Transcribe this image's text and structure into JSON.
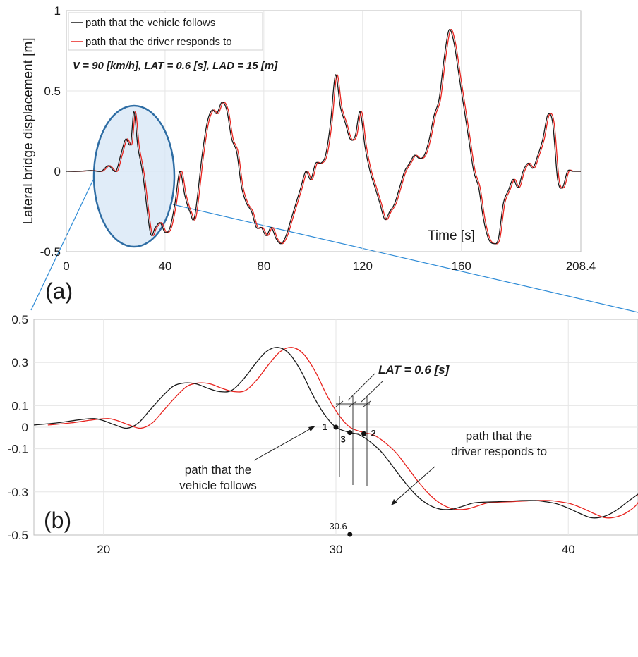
{
  "chart_data": [
    {
      "panel": "(a)",
      "type": "line",
      "ylabel": "Lateral bridge displacement [m]",
      "xlabel": "Time [s]",
      "xlim": [
        0,
        208.4
      ],
      "ylim": [
        -0.5,
        1
      ],
      "xticks": [
        "0",
        "40",
        "80",
        "120",
        "160",
        "208.4"
      ],
      "yticks": [
        "-0.5",
        "0",
        "0.5",
        "1"
      ],
      "annotation": "V = 90 [km/h],  LAT =  0.6 [s],  LAD =  15 [m]",
      "legend": {
        "position": "top-left",
        "entries": [
          "path that the vehicle follows",
          "path that the driver responds to"
        ]
      },
      "colors": {
        "vehicle": "#1a1a1a",
        "driver": "#e8241f",
        "highlight": "#2e6da4"
      },
      "series": [
        {
          "name": "path that the vehicle follows",
          "x": [
            0,
            5,
            10,
            14,
            17,
            20,
            22,
            24,
            26,
            27.4,
            29,
            31,
            34,
            36,
            38,
            40,
            42,
            44,
            46,
            48,
            50,
            52,
            55,
            57,
            59,
            61,
            63,
            65,
            67,
            69,
            71,
            73,
            75,
            77,
            79,
            81,
            83,
            85,
            87,
            89,
            91,
            93,
            95,
            97,
            99,
            101,
            103,
            105,
            107,
            109,
            111,
            113,
            115,
            117,
            119,
            121,
            123,
            125,
            127,
            129,
            131,
            133,
            135,
            137,
            139,
            141,
            143,
            145,
            147,
            149,
            151,
            153,
            155,
            157,
            159,
            161,
            163,
            165,
            167,
            169,
            171,
            173,
            175,
            177,
            179,
            181,
            183,
            185,
            187,
            189,
            191,
            193,
            195,
            197,
            199,
            201,
            203,
            205,
            207,
            208.4
          ],
          "y": [
            0,
            0,
            0.005,
            0,
            0.035,
            0,
            0.1,
            0.2,
            0.17,
            0.37,
            0.15,
            -0.02,
            -0.38,
            -0.35,
            -0.32,
            -0.38,
            -0.35,
            -0.2,
            0,
            -0.15,
            -0.25,
            -0.28,
            0.1,
            0.3,
            0.38,
            0.36,
            0.43,
            0.38,
            0.2,
            0.12,
            -0.1,
            -0.2,
            -0.25,
            -0.35,
            -0.35,
            -0.4,
            -0.35,
            -0.42,
            -0.45,
            -0.4,
            -0.3,
            -0.2,
            -0.1,
            0,
            -0.05,
            0.05,
            0.05,
            0.1,
            0.3,
            0.6,
            0.4,
            0.3,
            0.2,
            0.22,
            0.37,
            0.15,
            0,
            -0.1,
            -0.2,
            -0.3,
            -0.25,
            -0.2,
            -0.1,
            0,
            0.05,
            0.1,
            0.08,
            0.1,
            0.2,
            0.35,
            0.45,
            0.7,
            0.88,
            0.8,
            0.6,
            0.4,
            0.2,
            0,
            -0.1,
            -0.3,
            -0.42,
            -0.45,
            -0.42,
            -0.2,
            -0.12,
            -0.05,
            -0.1,
            0,
            0.05,
            0.02,
            0.1,
            0.2,
            0.35,
            0.3,
            -0.05,
            -0.1,
            0,
            0,
            0,
            0
          ]
        },
        {
          "name": "path that the driver responds to",
          "x_shift": 0.6
        }
      ]
    },
    {
      "panel": "(b)",
      "type": "line",
      "xlim": [
        17,
        43
      ],
      "ylim": [
        -0.5,
        0.5
      ],
      "xticks": [
        "20",
        "30",
        "40"
      ],
      "yticks": [
        "-0.5",
        "-0.3",
        "-0.1",
        "0",
        "0.1",
        "0.3",
        "0.5"
      ],
      "annotation_lat": "LAT = 0.6 [s]",
      "label_vehicle": "path that the\nvehicle follows",
      "label_driver": "path that the\ndriver responds to",
      "points": [
        {
          "label": "1",
          "x": 30,
          "y": 0.0
        },
        {
          "label": "2",
          "x": 31.2,
          "y": -0.03
        },
        {
          "label": "3",
          "x": 30.6,
          "y": -0.025
        }
      ],
      "marker": {
        "label": "30.6",
        "x": 30.6,
        "y": -0.5
      },
      "series": [
        {
          "name": "path that the vehicle follows",
          "x": [
            17,
            18,
            19,
            19.6,
            20,
            20.5,
            21,
            21.5,
            22,
            22.5,
            23,
            23.5,
            24,
            24.5,
            25,
            25.5,
            26,
            26.5,
            27,
            27.5,
            28,
            28.5,
            29,
            29.5,
            30,
            30.6,
            31,
            31.5,
            32,
            32.5,
            33,
            33.5,
            34,
            34.5,
            35,
            35.5,
            36,
            37,
            38,
            38.6,
            39,
            39.5,
            40,
            40.5,
            41,
            41.5,
            42,
            42.5,
            43
          ],
          "y": [
            0.01,
            0.02,
            0.035,
            0.04,
            0.03,
            0.01,
            -0.005,
            0.02,
            0.08,
            0.14,
            0.19,
            0.205,
            0.2,
            0.18,
            0.165,
            0.17,
            0.22,
            0.29,
            0.35,
            0.37,
            0.34,
            0.26,
            0.15,
            0.06,
            0.0,
            -0.025,
            -0.035,
            -0.07,
            -0.12,
            -0.19,
            -0.26,
            -0.32,
            -0.36,
            -0.38,
            -0.38,
            -0.365,
            -0.35,
            -0.345,
            -0.34,
            -0.34,
            -0.345,
            -0.355,
            -0.375,
            -0.4,
            -0.42,
            -0.415,
            -0.39,
            -0.35,
            -0.31
          ]
        },
        {
          "name": "path that the driver responds to",
          "x_shift": 0.6
        }
      ]
    }
  ],
  "panel_labels": [
    "(a)",
    "(b)"
  ]
}
